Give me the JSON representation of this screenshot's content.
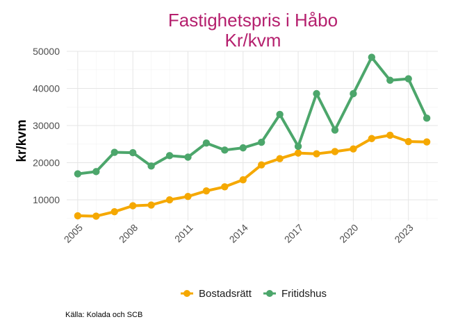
{
  "chart_data": {
    "type": "line",
    "title": "Fastighetspris i Håbo",
    "subtitle": "Kr/kvm",
    "xlabel": "",
    "ylabel": "kr/kvm",
    "xlim": [
      2004.4,
      2024.6
    ],
    "ylim": [
      4400,
      50000
    ],
    "x_ticks": [
      2005,
      2008,
      2011,
      2014,
      2017,
      2020,
      2023
    ],
    "y_ticks": [
      10000,
      20000,
      30000,
      40000,
      50000
    ],
    "y_tick_labels": [
      "10000",
      "20000",
      "30000",
      "40000",
      "50000"
    ],
    "grid": true,
    "legend_position": "bottom",
    "series": [
      {
        "name": "Bostadsrätt",
        "color": "#F5A800",
        "x": [
          2005,
          2006,
          2007,
          2008,
          2009,
          2010,
          2011,
          2012,
          2013,
          2014,
          2015,
          2016,
          2017,
          2018,
          2019,
          2020,
          2021,
          2022,
          2023,
          2024
        ],
        "values": [
          5700,
          5600,
          6800,
          8400,
          8600,
          10000,
          10900,
          12400,
          13500,
          15400,
          19400,
          21100,
          22600,
          22400,
          23000,
          23700,
          26500,
          27400,
          25700,
          25600
        ]
      },
      {
        "name": "Fritidshus",
        "color": "#4CA66B",
        "x": [
          2005,
          2006,
          2007,
          2008,
          2009,
          2010,
          2011,
          2012,
          2013,
          2014,
          2015,
          2016,
          2017,
          2018,
          2019,
          2020,
          2021,
          2022,
          2023,
          2024
        ],
        "values": [
          17000,
          17600,
          22800,
          22700,
          19100,
          21900,
          21500,
          25300,
          23400,
          24000,
          25500,
          33000,
          24400,
          38600,
          28800,
          38600,
          48400,
          42200,
          42600,
          32000
        ]
      }
    ]
  },
  "title_color": "#B5206E",
  "caption": "Källa: Kolada och SCB"
}
